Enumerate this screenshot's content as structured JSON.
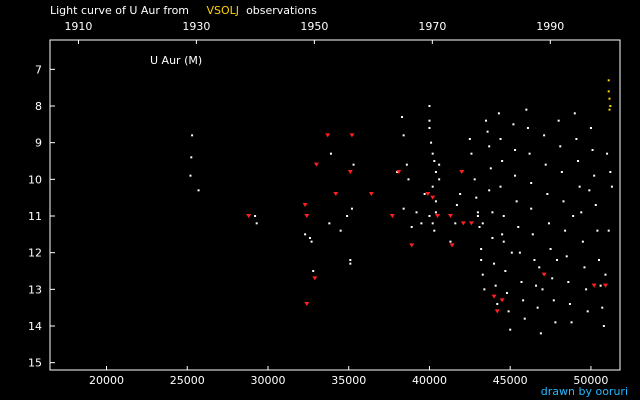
{
  "header": {
    "title_prefix": "Light curve of U Aur from",
    "title_source": "VSOLJ",
    "title_suffix": "observations"
  },
  "credit": "drawn by ooruri",
  "colors": {
    "background": "#000000",
    "axis": "#ffffff",
    "points": "#ffffff",
    "upper_limits": "#ff2020",
    "highlight": "#ffd400",
    "credit": "#22b8ff"
  },
  "chart_data": {
    "type": "scatter",
    "title": "Light curve of U Aur from VSOLJ observations",
    "star_label": "U Aur (M)",
    "xlabel": "",
    "ylabel": "",
    "xlim": [
      16500,
      51800
    ],
    "ylim": [
      15.2,
      6.2
    ],
    "y_inverted": true,
    "x_ticks": [
      20000,
      25000,
      30000,
      35000,
      40000,
      45000,
      50000
    ],
    "x_tick_labels": [
      "20000",
      "25000",
      "30000",
      "35000",
      "40000",
      "45000",
      "50000"
    ],
    "y_ticks": [
      7,
      8,
      9,
      10,
      11,
      12,
      13,
      14,
      15
    ],
    "y_tick_labels": [
      "7",
      "8",
      "9",
      "10",
      "11",
      "12",
      "13",
      "14",
      "15"
    ],
    "top_axis_ticks_jd": [
      18262,
      25567,
      32872,
      40178,
      47483
    ],
    "top_axis_labels": [
      "1910",
      "1930",
      "1950",
      "1970",
      "1990"
    ],
    "grid": false,
    "series": [
      {
        "name": "",
        "marker": "dot",
        "color": "#ffffff",
        "points": [
          [
            25300,
            8.8
          ],
          [
            25250,
            9.4
          ],
          [
            25200,
            9.9
          ],
          [
            25700,
            10.3
          ],
          [
            29200,
            11.0
          ],
          [
            29300,
            11.2
          ],
          [
            32300,
            11.5
          ],
          [
            32600,
            11.6
          ],
          [
            32700,
            11.7
          ],
          [
            32800,
            12.5
          ],
          [
            33900,
            9.3
          ],
          [
            33800,
            11.2
          ],
          [
            34500,
            11.4
          ],
          [
            34900,
            11.0
          ],
          [
            35100,
            12.2
          ],
          [
            35100,
            12.3
          ],
          [
            35200,
            10.8
          ],
          [
            35300,
            9.6
          ],
          [
            38000,
            9.8
          ],
          [
            38300,
            8.3
          ],
          [
            38400,
            8.8
          ],
          [
            38600,
            9.6
          ],
          [
            38700,
            10.0
          ],
          [
            38400,
            10.8
          ],
          [
            38900,
            11.3
          ],
          [
            39200,
            10.9
          ],
          [
            39500,
            11.2
          ],
          [
            39700,
            10.4
          ],
          [
            40000,
            8.0
          ],
          [
            40000,
            8.4
          ],
          [
            40000,
            8.6
          ],
          [
            40100,
            9.0
          ],
          [
            40200,
            9.3
          ],
          [
            40300,
            9.5
          ],
          [
            40400,
            9.8
          ],
          [
            40200,
            10.2
          ],
          [
            40400,
            10.6
          ],
          [
            40000,
            11.0
          ],
          [
            40200,
            11.2
          ],
          [
            40300,
            11.4
          ],
          [
            40400,
            10.9
          ],
          [
            40600,
            9.6
          ],
          [
            40600,
            10.0
          ],
          [
            41300,
            11.7
          ],
          [
            41600,
            11.2
          ],
          [
            41700,
            10.7
          ],
          [
            41900,
            10.4
          ],
          [
            42500,
            8.9
          ],
          [
            42600,
            9.3
          ],
          [
            42800,
            10.0
          ],
          [
            42900,
            10.5
          ],
          [
            43000,
            11.0
          ],
          [
            43100,
            11.3
          ],
          [
            43200,
            11.9
          ],
          [
            43300,
            12.6
          ],
          [
            43400,
            13.0
          ],
          [
            43200,
            12.2
          ],
          [
            43500,
            8.4
          ],
          [
            43600,
            8.7
          ],
          [
            43700,
            9.1
          ],
          [
            43800,
            9.7
          ],
          [
            43700,
            10.3
          ],
          [
            43900,
            10.9
          ],
          [
            43900,
            11.6
          ],
          [
            44000,
            12.3
          ],
          [
            44100,
            12.9
          ],
          [
            44200,
            13.4
          ],
          [
            44300,
            8.2
          ],
          [
            44400,
            8.9
          ],
          [
            44500,
            9.5
          ],
          [
            44400,
            10.2
          ],
          [
            44600,
            11.0
          ],
          [
            44600,
            11.7
          ],
          [
            44700,
            12.5
          ],
          [
            44800,
            13.1
          ],
          [
            44900,
            13.6
          ],
          [
            45000,
            14.1
          ],
          [
            45200,
            8.5
          ],
          [
            45300,
            9.2
          ],
          [
            45300,
            9.9
          ],
          [
            45400,
            10.6
          ],
          [
            45500,
            11.3
          ],
          [
            45600,
            12.0
          ],
          [
            45700,
            12.8
          ],
          [
            45800,
            13.3
          ],
          [
            45900,
            13.8
          ],
          [
            46000,
            8.1
          ],
          [
            46100,
            8.6
          ],
          [
            46200,
            9.3
          ],
          [
            46300,
            10.1
          ],
          [
            46300,
            10.8
          ],
          [
            46400,
            11.5
          ],
          [
            46500,
            12.2
          ],
          [
            46600,
            12.9
          ],
          [
            46700,
            13.5
          ],
          [
            46900,
            14.2
          ],
          [
            47100,
            8.8
          ],
          [
            47200,
            9.6
          ],
          [
            47300,
            10.4
          ],
          [
            47400,
            11.2
          ],
          [
            47500,
            11.9
          ],
          [
            47600,
            12.7
          ],
          [
            47700,
            13.3
          ],
          [
            47800,
            13.9
          ],
          [
            48000,
            8.4
          ],
          [
            48100,
            9.1
          ],
          [
            48200,
            9.8
          ],
          [
            48300,
            10.6
          ],
          [
            48400,
            11.4
          ],
          [
            48500,
            12.1
          ],
          [
            48600,
            12.8
          ],
          [
            48700,
            13.4
          ],
          [
            48800,
            13.9
          ],
          [
            49000,
            8.2
          ],
          [
            49100,
            8.9
          ],
          [
            49200,
            9.5
          ],
          [
            49300,
            10.2
          ],
          [
            49400,
            10.9
          ],
          [
            49500,
            11.7
          ],
          [
            49600,
            12.4
          ],
          [
            49700,
            13.0
          ],
          [
            49800,
            13.6
          ],
          [
            50000,
            8.6
          ],
          [
            50100,
            9.2
          ],
          [
            50200,
            9.9
          ],
          [
            50300,
            10.7
          ],
          [
            50400,
            11.4
          ],
          [
            50500,
            12.2
          ],
          [
            50600,
            12.9
          ],
          [
            50700,
            13.5
          ],
          [
            50800,
            14.0
          ],
          [
            51000,
            9.3
          ],
          [
            51200,
            9.8
          ],
          [
            51300,
            10.2
          ],
          [
            51100,
            11.4
          ],
          [
            43000,
            10.9
          ],
          [
            43300,
            11.2
          ],
          [
            44500,
            11.5
          ],
          [
            45100,
            12.0
          ],
          [
            46800,
            12.4
          ],
          [
            47000,
            13.0
          ],
          [
            47900,
            12.2
          ],
          [
            48900,
            11.0
          ],
          [
            49900,
            10.3
          ],
          [
            50900,
            12.6
          ]
        ]
      },
      {
        "name": "",
        "marker": "v",
        "color": "#ff2020",
        "points": [
          [
            28800,
            11.0
          ],
          [
            32300,
            10.7
          ],
          [
            32400,
            11.0
          ],
          [
            32400,
            13.4
          ],
          [
            32900,
            12.7
          ],
          [
            33000,
            9.6
          ],
          [
            33700,
            8.8
          ],
          [
            34200,
            10.4
          ],
          [
            35100,
            9.8
          ],
          [
            35200,
            8.8
          ],
          [
            36400,
            10.4
          ],
          [
            37700,
            11.0
          ],
          [
            38100,
            9.8
          ],
          [
            38900,
            11.8
          ],
          [
            39900,
            10.4
          ],
          [
            40200,
            10.5
          ],
          [
            40500,
            11.0
          ],
          [
            41300,
            11.0
          ],
          [
            41400,
            11.8
          ],
          [
            42000,
            9.8
          ],
          [
            42100,
            11.2
          ],
          [
            42600,
            11.2
          ],
          [
            44000,
            13.2
          ],
          [
            44200,
            13.6
          ],
          [
            44500,
            13.3
          ],
          [
            47100,
            12.6
          ],
          [
            50200,
            12.9
          ],
          [
            50900,
            12.9
          ]
        ]
      },
      {
        "name": "",
        "marker": "dot",
        "color": "#ffd400",
        "points": [
          [
            51100,
            7.3
          ],
          [
            51100,
            7.6
          ],
          [
            51150,
            7.8
          ],
          [
            51200,
            8.0
          ],
          [
            51150,
            8.1
          ]
        ]
      }
    ]
  }
}
